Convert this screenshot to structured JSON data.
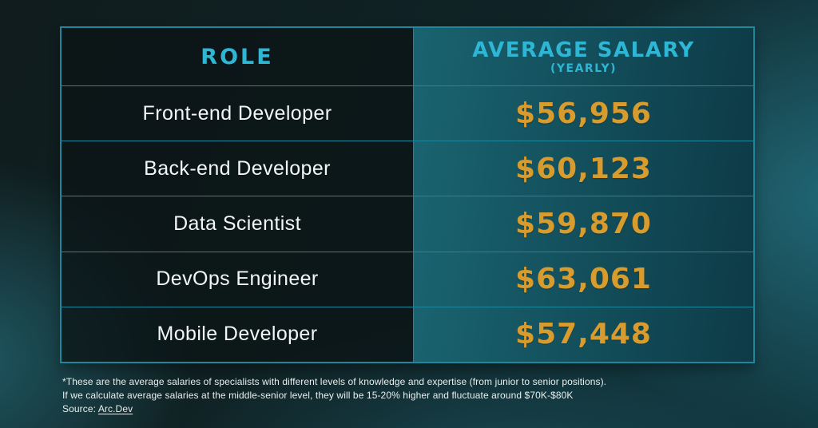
{
  "colors": {
    "accent_cyan": "#2eb6d4",
    "table_border": "#1e879c",
    "salary_gold": "#d89b2e",
    "background_dark": "#101c1e",
    "background_glow_teal": "#2f98ac"
  },
  "table": {
    "header": {
      "role": "ROLE",
      "salary": "AVERAGE SALARY",
      "salary_sub": "(YEARLY)"
    },
    "rows": [
      {
        "role": "Front-end Developer",
        "salary": "$56,956"
      },
      {
        "role": "Back-end Developer",
        "salary": "$60,123"
      },
      {
        "role": "Data Scientist",
        "salary": "$59,870"
      },
      {
        "role": "DevOps Engineer",
        "salary": "$63,061"
      },
      {
        "role": "Mobile Developer",
        "salary": "$57,448"
      }
    ]
  },
  "footnote": {
    "line1": "*These are the average salaries of specialists with different levels of knowledge and expertise (from junior to senior positions).",
    "line2": "If we calculate average salaries at the middle-senior level, they will be 15-20% higher and fluctuate around $70K-$80K",
    "source_label": "Source: ",
    "source_link": "Arc.Dev"
  },
  "chart_data": {
    "type": "table",
    "title": "",
    "columns": [
      "ROLE",
      "AVERAGE SALARY (YEARLY)"
    ],
    "categories": [
      "Front-end Developer",
      "Back-end Developer",
      "Data Scientist",
      "DevOps Engineer",
      "Mobile Developer"
    ],
    "values": [
      56956,
      60123,
      59870,
      63061,
      57448
    ],
    "currency_symbol": "$",
    "source": "Arc.Dev",
    "footnote_lines": [
      "*These are the average salaries of specialists with different levels of knowledge and expertise (from junior to senior positions).",
      "If we calculate average salaries at the middle-senior level, they will be 15-20% higher and fluctuate around $70K-$80K"
    ]
  }
}
